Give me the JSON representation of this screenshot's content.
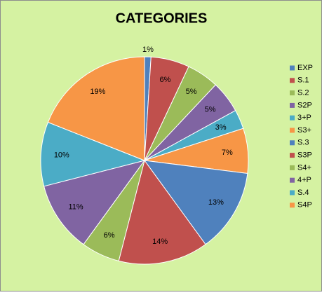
{
  "chart_data": {
    "type": "pie",
    "title": "CATEGORIES",
    "categories": [
      "EXP",
      "S.1",
      "S.2",
      "S2P",
      "3+P",
      "S3+",
      "S.3",
      "S3P",
      "S4+",
      "4+P",
      "S.4",
      "S4P"
    ],
    "values": [
      1,
      6,
      5,
      5,
      3,
      7,
      13,
      14,
      6,
      11,
      10,
      19
    ],
    "value_labels": [
      "1%",
      "6%",
      "5%",
      "5%",
      "3%",
      "7%",
      "13%",
      "14%",
      "6%",
      "11%",
      "10%",
      "19%"
    ],
    "colors": [
      "#4f81bd",
      "#c0504d",
      "#9bbb59",
      "#8064a2",
      "#4bacc6",
      "#f79646",
      "#4f81bd",
      "#c0504d",
      "#9bbb59",
      "#8064a2",
      "#4bacc6",
      "#f79646"
    ],
    "legend": "right"
  }
}
